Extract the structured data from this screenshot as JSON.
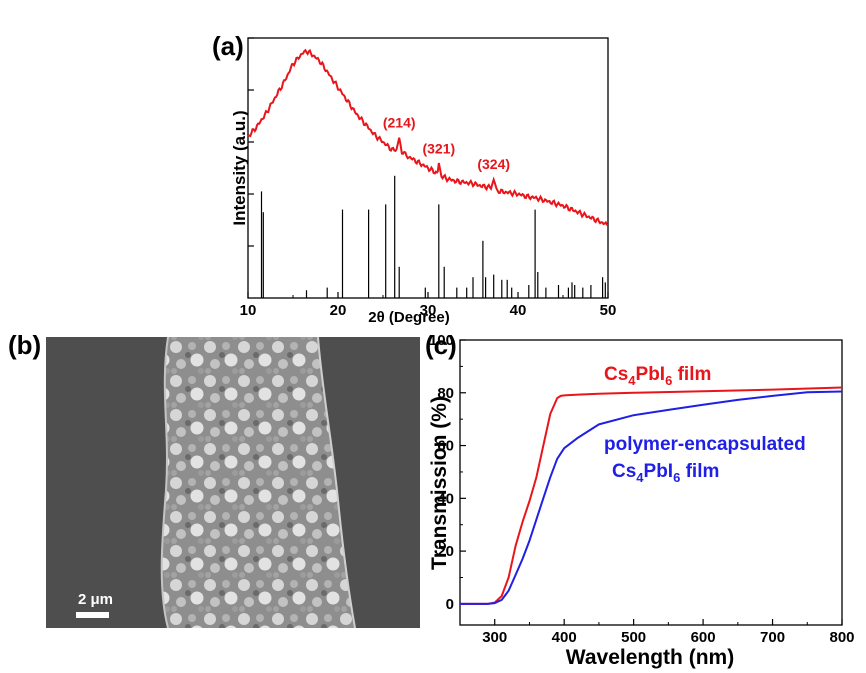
{
  "panels": {
    "a": {
      "label": "(a)"
    },
    "b": {
      "label": "(b)",
      "scale_bar_text": "2 μm"
    },
    "c": {
      "label": "(c)"
    }
  },
  "chart_data": [
    {
      "panel": "(a)",
      "type": "line",
      "xlabel": "2θ (Degree)",
      "ylabel": "Intensity (a.u.)",
      "xlim": [
        10,
        50
      ],
      "xticks": [
        10,
        20,
        30,
        40,
        50
      ],
      "yticks_labeled": false,
      "series": [
        {
          "color": "#e8151b",
          "x": [
            10,
            11,
            12,
            13,
            14,
            15,
            16,
            16.5,
            17,
            18,
            19,
            20,
            21,
            22,
            23,
            24,
            25,
            26,
            26.5,
            26.8,
            27.1,
            28,
            29,
            30,
            31,
            31.2,
            31.5,
            32,
            33,
            34,
            35,
            36,
            37,
            37.3,
            37.6,
            38,
            39,
            40,
            41,
            42,
            43,
            44,
            45,
            46,
            47,
            48,
            49,
            50
          ],
          "y": [
            0.62,
            0.66,
            0.71,
            0.77,
            0.83,
            0.9,
            0.94,
            0.95,
            0.94,
            0.91,
            0.86,
            0.81,
            0.76,
            0.71,
            0.67,
            0.63,
            0.6,
            0.57,
            0.57,
            0.61,
            0.56,
            0.54,
            0.52,
            0.5,
            0.48,
            0.51,
            0.47,
            0.46,
            0.45,
            0.445,
            0.44,
            0.43,
            0.425,
            0.45,
            0.42,
            0.41,
            0.405,
            0.4,
            0.39,
            0.385,
            0.375,
            0.365,
            0.355,
            0.34,
            0.325,
            0.31,
            0.295,
            0.28
          ]
        }
      ],
      "annotations": [
        {
          "text": "(214)",
          "x": 26.8
        },
        {
          "text": "(321)",
          "x": 31.2
        },
        {
          "text": "(324)",
          "x": 37.3
        }
      ],
      "reference_lines": {
        "x": [
          11.5,
          11.7,
          16.5,
          18.8,
          20.5,
          23.4,
          25.3,
          26.3,
          26.8,
          29.7,
          31.2,
          31.8,
          33.2,
          34.3,
          35,
          36.1,
          36.4,
          37.3,
          38.2,
          38.8,
          39.3,
          41.2,
          41.9,
          42.2,
          43.1,
          44.5,
          45.6,
          46,
          46.3,
          47.2,
          48.1,
          49.4,
          49.7
        ],
        "h": [
          0.41,
          0.33,
          0.03,
          0.04,
          0.34,
          0.34,
          0.36,
          0.47,
          0.12,
          0.04,
          0.36,
          0.12,
          0.04,
          0.04,
          0.08,
          0.22,
          0.08,
          0.09,
          0.07,
          0.07,
          0.04,
          0.05,
          0.34,
          0.1,
          0.04,
          0.05,
          0.04,
          0.06,
          0.05,
          0.04,
          0.05,
          0.08,
          0.06
        ]
      }
    },
    {
      "panel": "(c)",
      "type": "line",
      "xlabel": "Wavelength (nm)",
      "ylabel": "Transmission (%)",
      "xlim": [
        250,
        800
      ],
      "ylim": [
        -8,
        100
      ],
      "xticks": [
        300,
        400,
        500,
        600,
        700,
        800
      ],
      "yticks": [
        0,
        20,
        40,
        60,
        80,
        100
      ],
      "series": [
        {
          "name": "Cs4PbI6 film",
          "color": "#e8151b",
          "x": [
            250,
            290,
            300,
            310,
            320,
            330,
            340,
            350,
            360,
            370,
            380,
            390,
            395,
            400,
            420,
            450,
            500,
            600,
            700,
            800
          ],
          "y": [
            0,
            0,
            0.5,
            3,
            10,
            22,
            31,
            39,
            48,
            60,
            72,
            78,
            78.8,
            79,
            79.3,
            79.6,
            80,
            80.6,
            81.2,
            82
          ]
        },
        {
          "name": "polymer-encapsulated Cs4PbI6 film",
          "color": "#1f1fe6",
          "x": [
            250,
            290,
            300,
            310,
            320,
            330,
            340,
            350,
            360,
            370,
            380,
            390,
            400,
            420,
            450,
            500,
            550,
            600,
            650,
            700,
            750,
            800
          ],
          "y": [
            0,
            0,
            0.3,
            1.5,
            5,
            11,
            17,
            24,
            32,
            40,
            48,
            55,
            59,
            63,
            68,
            71.5,
            73.5,
            75.5,
            77.3,
            78.8,
            80.2,
            80.5
          ]
        }
      ],
      "legend": {
        "red": {
          "pre": "Cs",
          "sub1": "4",
          "mid": "PbI",
          "sub2": "6",
          "post": " film"
        },
        "blue_line1": "polymer-encapsulated",
        "blue_line2": {
          "pre": "Cs",
          "sub1": "4",
          "mid": "PbI",
          "sub2": "6",
          "post": " film"
        }
      }
    }
  ]
}
